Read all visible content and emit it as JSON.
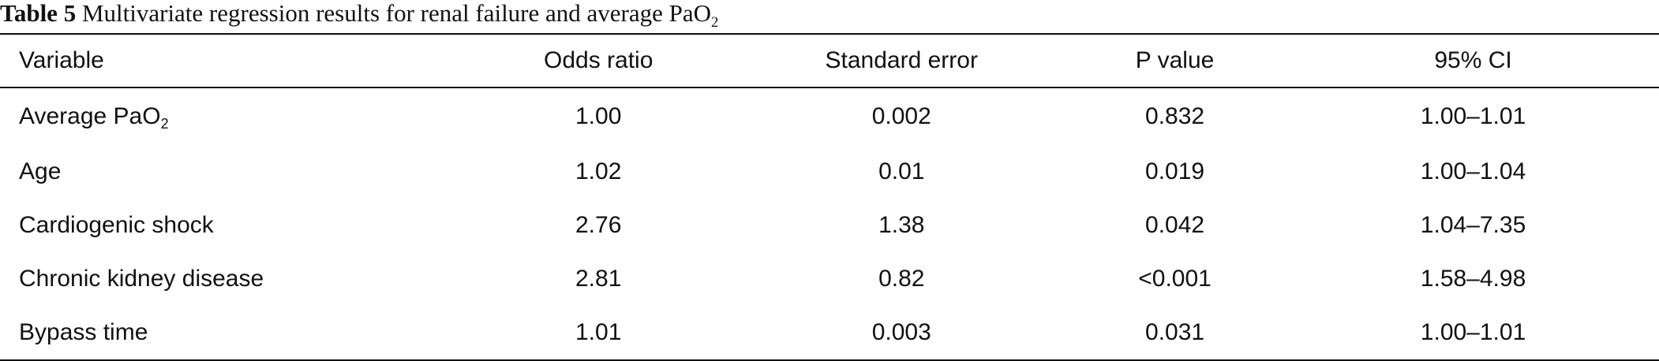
{
  "caption": {
    "label": "Table 5",
    "text_main": "Multivariate regression results for renal failure and average PaO",
    "text_sub": "2"
  },
  "table": {
    "headers": [
      "Variable",
      "Odds ratio",
      "Standard error",
      "P value",
      "95% CI"
    ],
    "rows": [
      {
        "variable": "Average PaO",
        "variable_sub": "2",
        "odds_ratio": "1.00",
        "standard_error": "0.002",
        "p_value": "0.832",
        "ci": "1.00–1.01"
      },
      {
        "variable": "Age",
        "odds_ratio": "1.02",
        "standard_error": "0.01",
        "p_value": "0.019",
        "ci": "1.00–1.04"
      },
      {
        "variable": "Cardiogenic shock",
        "odds_ratio": "2.76",
        "standard_error": "1.38",
        "p_value": "0.042",
        "ci": "1.04–7.35"
      },
      {
        "variable": "Chronic kidney disease",
        "odds_ratio": "2.81",
        "standard_error": "0.82",
        "p_value": "<0.001",
        "ci": "1.58–4.98"
      },
      {
        "variable": "Bypass time",
        "odds_ratio": "1.01",
        "standard_error": "0.003",
        "p_value": "0.031",
        "ci": "1.00–1.01"
      }
    ]
  }
}
